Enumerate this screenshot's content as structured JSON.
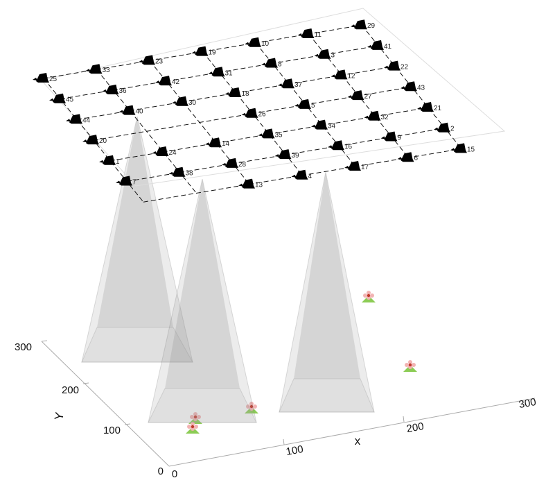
{
  "axes": {
    "x": {
      "label": "x",
      "ticks": [
        "0",
        "100",
        "200",
        "300"
      ]
    },
    "y": {
      "label": "Y",
      "ticks": [
        "0",
        "100",
        "200",
        "300"
      ]
    }
  },
  "ground_cells": [
    {
      "id": "25",
      "row": 0,
      "col": 0
    },
    {
      "id": "33",
      "row": 0,
      "col": 1
    },
    {
      "id": "23",
      "row": 0,
      "col": 2
    },
    {
      "id": "19",
      "row": 0,
      "col": 3
    },
    {
      "id": "10",
      "row": 0,
      "col": 4
    },
    {
      "id": "11",
      "row": 0,
      "col": 5
    },
    {
      "id": "29",
      "row": 0,
      "col": 6
    },
    {
      "id": "45",
      "row": 1,
      "col": 0
    },
    {
      "id": "36",
      "row": 1,
      "col": 1
    },
    {
      "id": "42",
      "row": 1,
      "col": 2
    },
    {
      "id": "31",
      "row": 1,
      "col": 3
    },
    {
      "id": "8",
      "row": 1,
      "col": 4
    },
    {
      "id": "3",
      "row": 1,
      "col": 5
    },
    {
      "id": "41",
      "row": 1,
      "col": 6
    },
    {
      "id": "44",
      "row": 2,
      "col": 0
    },
    {
      "id": "40",
      "row": 2,
      "col": 1
    },
    {
      "id": "30",
      "row": 2,
      "col": 2
    },
    {
      "id": "18",
      "row": 2,
      "col": 3
    },
    {
      "id": "37",
      "row": 2,
      "col": 4
    },
    {
      "id": "12",
      "row": 2,
      "col": 5
    },
    {
      "id": "22",
      "row": 2,
      "col": 6
    },
    {
      "id": "20",
      "row": 3,
      "col": 0
    },
    {
      "id": "26",
      "row": 3,
      "col": 3
    },
    {
      "id": "5",
      "row": 3,
      "col": 4
    },
    {
      "id": "27",
      "row": 3,
      "col": 5
    },
    {
      "id": "43",
      "row": 3,
      "col": 6
    },
    {
      "id": "1",
      "row": 4,
      "col": 0
    },
    {
      "id": "24",
      "row": 4,
      "col": 1
    },
    {
      "id": "14",
      "row": 4,
      "col": 2
    },
    {
      "id": "35",
      "row": 4,
      "col": 3
    },
    {
      "id": "34",
      "row": 4,
      "col": 4
    },
    {
      "id": "32",
      "row": 4,
      "col": 5
    },
    {
      "id": "21",
      "row": 4,
      "col": 6
    },
    {
      "id": "7",
      "row": 5,
      "col": 0
    },
    {
      "id": "38",
      "row": 5,
      "col": 1
    },
    {
      "id": "28",
      "row": 5,
      "col": 2
    },
    {
      "id": "39",
      "row": 5,
      "col": 3
    },
    {
      "id": "16",
      "row": 5,
      "col": 4
    },
    {
      "id": "9",
      "row": 5,
      "col": 5
    },
    {
      "id": "2",
      "row": 5,
      "col": 6
    },
    {
      "id": "13",
      "row": 6,
      "col": 2
    },
    {
      "id": "4",
      "row": 6,
      "col": 3
    },
    {
      "id": "17",
      "row": 6,
      "col": 4
    },
    {
      "id": "6",
      "row": 6,
      "col": 5
    },
    {
      "id": "15",
      "row": 6,
      "col": 6
    }
  ]
}
